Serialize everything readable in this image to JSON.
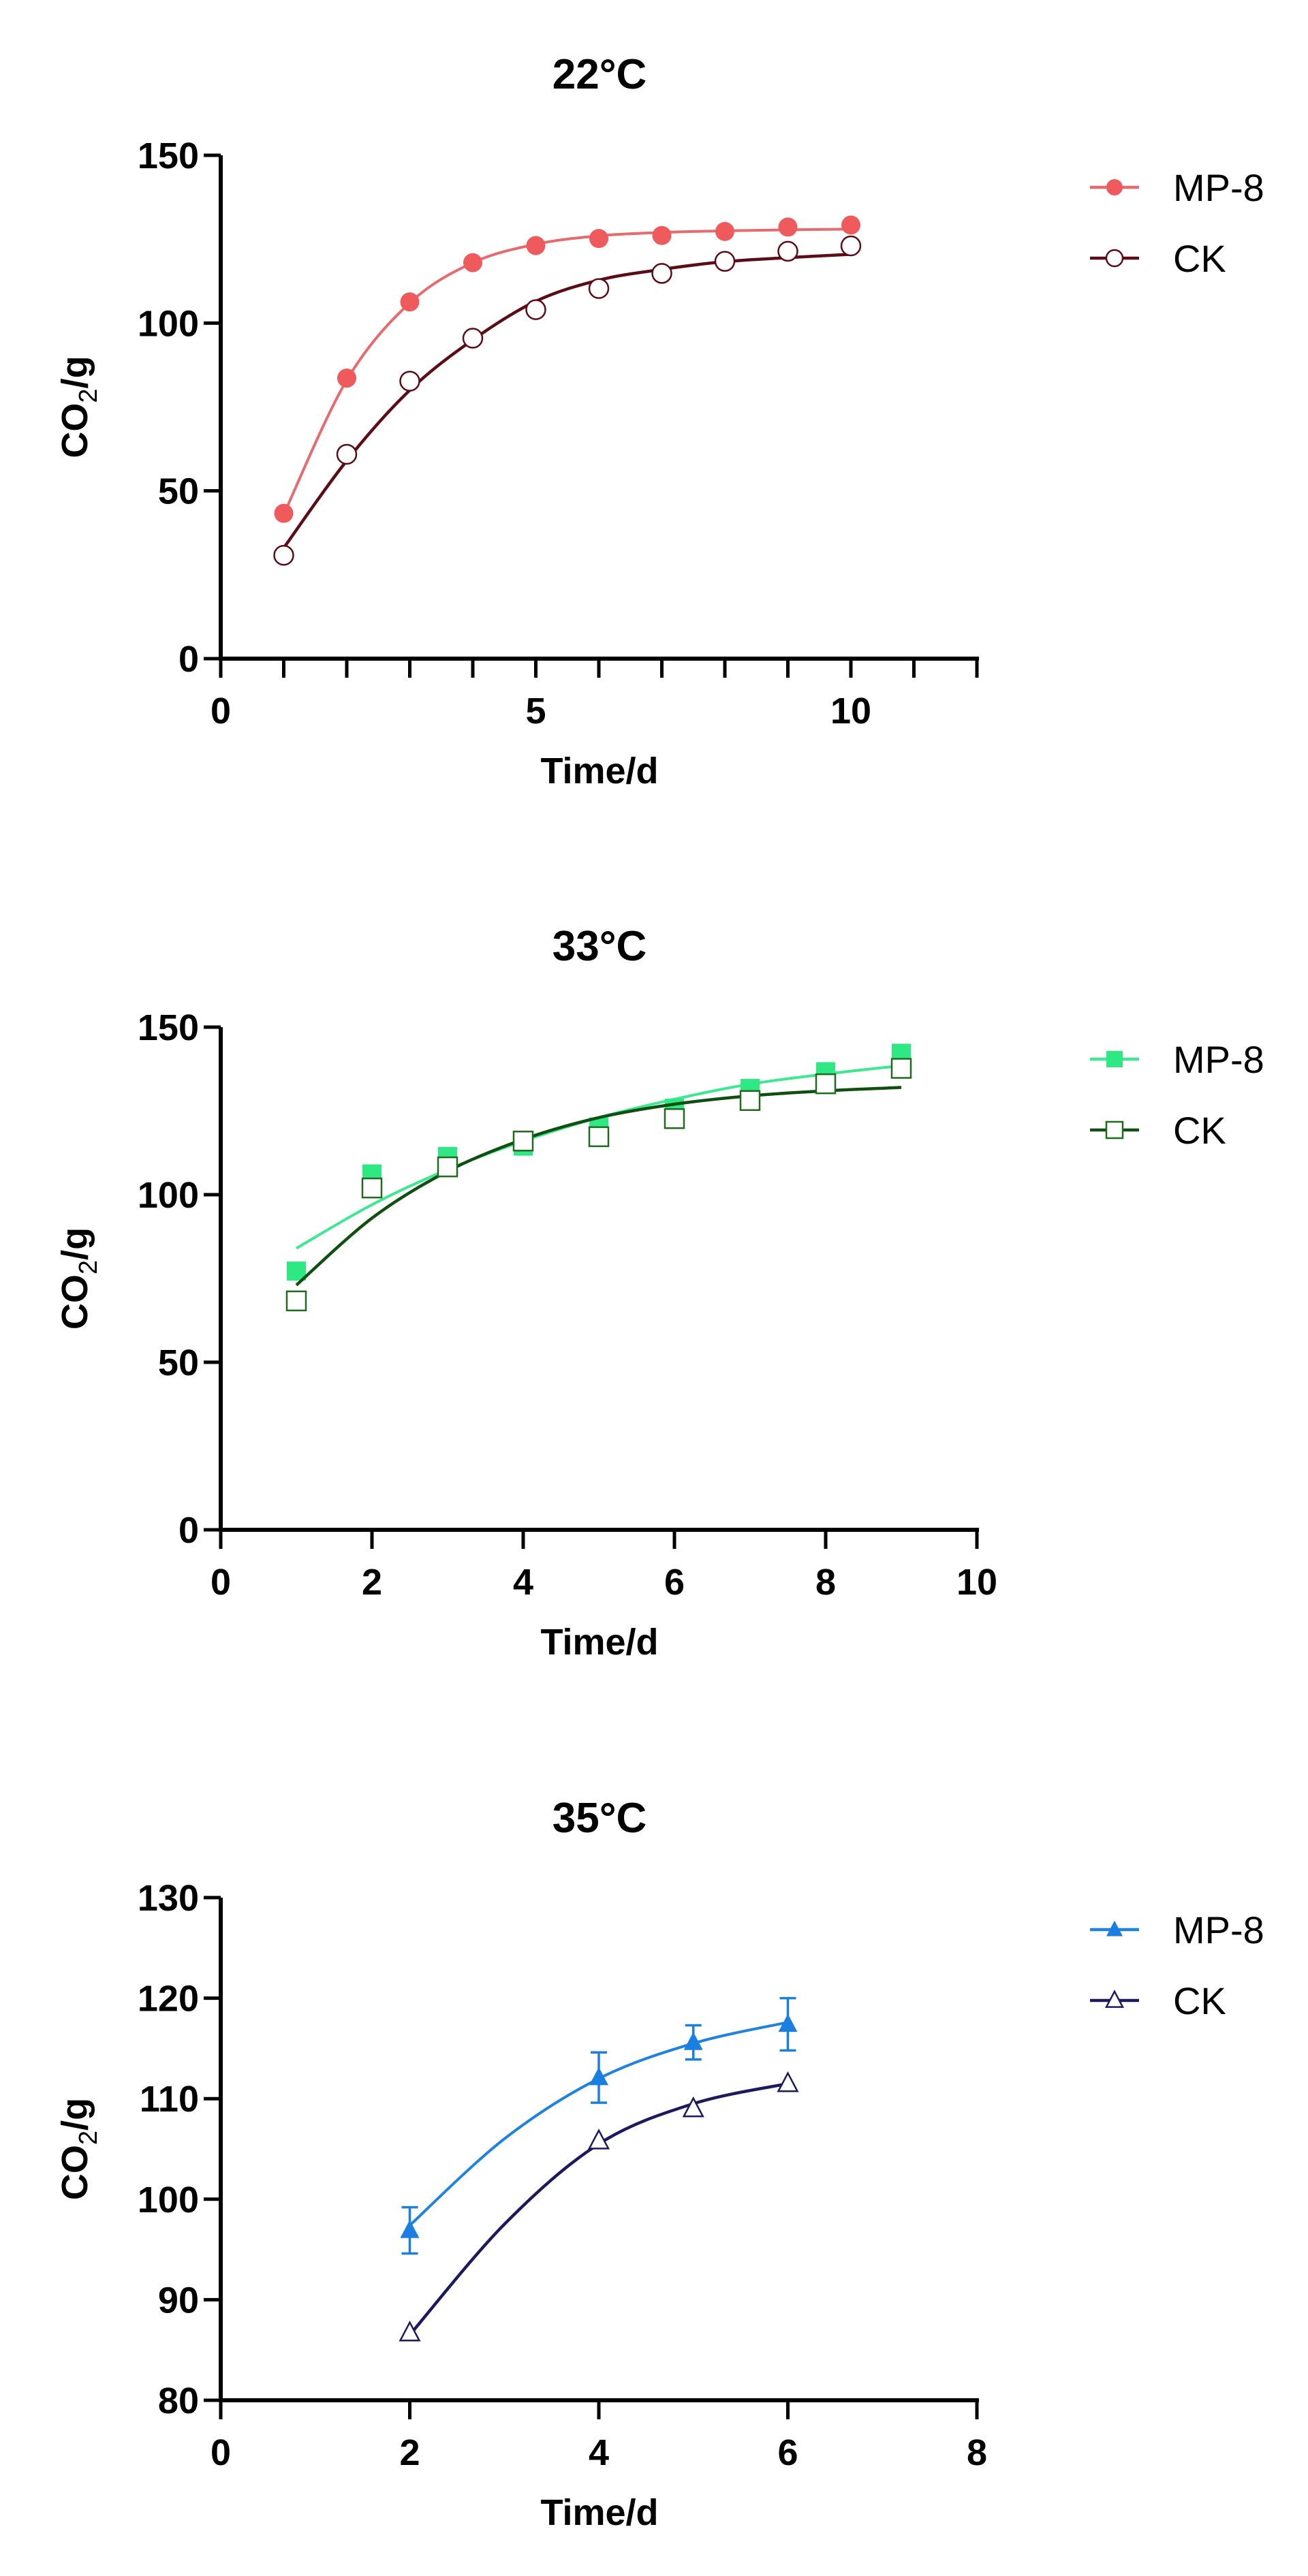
{
  "chart_data": [
    {
      "type": "line",
      "title": "22°C",
      "xlabel": "Time/d",
      "ylabel_main": "CO",
      "ylabel_sub": "2",
      "ylabel_tail": "/g",
      "xlim": [
        0,
        12
      ],
      "ylim": [
        0,
        150
      ],
      "xticks": [
        0,
        1,
        2,
        3,
        4,
        5,
        6,
        7,
        8,
        9,
        10,
        11,
        12
      ],
      "xtick_labels": [
        0,
        5,
        10
      ],
      "yticks": [
        0,
        50,
        100,
        150
      ],
      "grid": false,
      "legend": "top-right",
      "series": [
        {
          "name": "MP-8",
          "marker": "circle",
          "filled": true,
          "color": "#ef5a5c",
          "line_color": "#e66b6e",
          "x": [
            1,
            2,
            3,
            4,
            5,
            6,
            7,
            8,
            9,
            10
          ],
          "y": [
            43.3,
            83.6,
            106.3,
            118,
            123.1,
            125.2,
            126.1,
            127.3,
            128.6,
            129.2
          ],
          "fit_y": [
            43,
            83,
            106,
            118,
            123.5,
            126,
            127,
            127.5,
            127.8,
            128
          ]
        },
        {
          "name": "CK",
          "marker": "circle",
          "filled": false,
          "color": "#5a0d17",
          "line_color": "#5a0d17",
          "x": [
            1,
            2,
            3,
            4,
            5,
            6,
            7,
            8,
            9,
            10
          ],
          "y": [
            30.8,
            60.9,
            82.7,
            95.5,
            104,
            110.3,
            114.8,
            118.4,
            121.4,
            123
          ],
          "fit_y": [
            33,
            59,
            80,
            95,
            106.5,
            112.8,
            116,
            118.3,
            119.5,
            120.5
          ]
        }
      ]
    },
    {
      "type": "line",
      "title": "33°C",
      "xlabel": "Time/d",
      "ylabel_main": "CO",
      "ylabel_sub": "2",
      "ylabel_tail": "/g",
      "xlim": [
        0,
        10
      ],
      "ylim": [
        0,
        150
      ],
      "xticks": [
        0,
        2,
        4,
        6,
        8,
        10
      ],
      "xtick_labels": [
        0,
        2,
        4,
        6,
        8,
        10
      ],
      "yticks": [
        0,
        50,
        100,
        150
      ],
      "grid": false,
      "legend": "top-right",
      "series": [
        {
          "name": "MP-8",
          "marker": "square",
          "filled": true,
          "color": "#2ee884",
          "line_color": "#3ee890",
          "x": [
            1,
            2,
            3,
            4,
            5,
            6,
            7,
            8,
            9
          ],
          "y": [
            77.2,
            106.2,
            111.4,
            114.5,
            120.2,
            125.8,
            131.7,
            136.7,
            142.2
          ],
          "fit_y": [
            84,
            97,
            107.5,
            116,
            123,
            128.5,
            133,
            136,
            138.5
          ]
        },
        {
          "name": "CK",
          "marker": "square",
          "filled": false,
          "color": "#1e6b1e",
          "line_color": "#0f4f0f",
          "x": [
            1,
            2,
            3,
            4,
            5,
            6,
            7,
            8,
            9
          ],
          "y": [
            68.3,
            102,
            108.3,
            116,
            117.3,
            122.7,
            128.1,
            133.1,
            137.7
          ],
          "fit_y": [
            73,
            93,
            107,
            116.5,
            123,
            127,
            129.5,
            131,
            132
          ]
        }
      ]
    },
    {
      "type": "line",
      "title": "35°C",
      "xlabel": "Time/d",
      "ylabel_main": "CO",
      "ylabel_sub": "2",
      "ylabel_tail": "/g",
      "xlim": [
        0,
        8
      ],
      "ylim": [
        80,
        130
      ],
      "xticks": [
        0,
        2,
        4,
        6,
        8
      ],
      "xtick_labels": [
        0,
        2,
        4,
        6,
        8
      ],
      "yticks": [
        80,
        90,
        100,
        110,
        120,
        130
      ],
      "grid": false,
      "legend": "top-right",
      "series": [
        {
          "name": "MP-8",
          "marker": "triangle",
          "filled": true,
          "color": "#1a7fe0",
          "line_color": "#1f82de",
          "x": [
            2,
            4,
            5,
            6
          ],
          "y": [
            96.9,
            112.1,
            115.6,
            117.4
          ],
          "error": [
            2.3,
            2.5,
            1.7,
            2.6
          ],
          "fit_x": [
            2,
            3,
            4,
            5,
            6
          ],
          "fit_y": [
            97.4,
            106,
            112,
            115.5,
            117.6
          ]
        },
        {
          "name": "CK",
          "marker": "triangle",
          "filled": false,
          "color": "#1c1a5c",
          "line_color": "#1c1a5c",
          "x": [
            2,
            4,
            5,
            6
          ],
          "y": [
            86.7,
            105.8,
            109,
            111.5
          ],
          "fit_x": [
            2,
            3,
            4,
            5,
            6
          ],
          "fit_y": [
            86.5,
            97.5,
            105.5,
            109.5,
            111.5
          ]
        }
      ]
    }
  ]
}
